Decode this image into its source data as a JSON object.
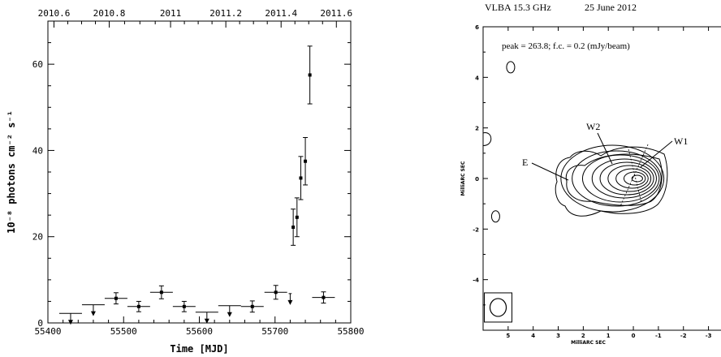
{
  "chart_data": [
    {
      "type": "scatter",
      "xlabel": "Time [MJD]",
      "ylabel": "10⁻⁸ photons cm⁻² s⁻¹",
      "xlim": [
        55400,
        55800
      ],
      "ylim": [
        0,
        70
      ],
      "x_ticks": [
        "55400",
        "55500",
        "55600",
        "55700",
        "55800"
      ],
      "y_ticks": [
        "0",
        "20",
        "40",
        "60"
      ],
      "top_axis_ticks": [
        {
          "label": "2010.6",
          "mjd": 55408
        },
        {
          "label": "2010.8",
          "mjd": 55481
        },
        {
          "label": "2011",
          "mjd": 55562
        },
        {
          "label": "2011.2",
          "mjd": 55635
        },
        {
          "label": "2011.4",
          "mjd": 55708
        },
        {
          "label": "2011.6",
          "mjd": 55781
        }
      ],
      "series": [
        {
          "kind": "detections",
          "points": [
            {
              "x": 55490,
              "y": 5.7,
              "xerr": 15,
              "yerr": 1.3
            },
            {
              "x": 55520,
              "y": 3.8,
              "xerr": 15,
              "yerr": 1.2
            },
            {
              "x": 55550,
              "y": 7.1,
              "xerr": 15,
              "yerr": 1.5
            },
            {
              "x": 55580,
              "y": 3.8,
              "xerr": 15,
              "yerr": 1.2
            },
            {
              "x": 55670,
              "y": 3.8,
              "xerr": 15,
              "yerr": 1.3
            },
            {
              "x": 55701,
              "y": 7.1,
              "xerr": 15,
              "yerr": 1.6
            },
            {
              "x": 55724,
              "y": 22.2,
              "xerr": 2,
              "yerr": 4.2
            },
            {
              "x": 55729,
              "y": 24.5,
              "xerr": 2,
              "yerr": 4.5
            },
            {
              "x": 55734,
              "y": 33.6,
              "xerr": 2,
              "yerr": 5.0
            },
            {
              "x": 55740,
              "y": 37.5,
              "xerr": 2,
              "yerr": 5.5
            },
            {
              "x": 55746,
              "y": 57.5,
              "xerr": 2,
              "yerr": 6.7
            },
            {
              "x": 55764,
              "y": 5.9,
              "xerr": 15,
              "yerr": 1.3
            }
          ]
        },
        {
          "kind": "upper_limits",
          "points": [
            {
              "x": 55430,
              "y": 2.2,
              "xerr": 15
            },
            {
              "x": 55460,
              "y": 4.2,
              "xerr": 15
            },
            {
              "x": 55610,
              "y": 2.5,
              "xerr": 15
            },
            {
              "x": 55640,
              "y": 4.0,
              "xerr": 15
            },
            {
              "x": 55720,
              "y": 6.8,
              "xerr": 2
            }
          ]
        }
      ]
    },
    {
      "type": "contour",
      "title_left": "VLBA   15.3 GHz",
      "title_right": "25 June 2012",
      "annotation": "peak = 263.8;  f.c. = 0.2  (mJy/beam)",
      "xlabel": "MilliARC SEC",
      "ylabel": "MilliARC SEC",
      "xlim": [
        6,
        -3.5
      ],
      "ylim": [
        -6,
        6
      ],
      "x_ticks": [
        "5",
        "4",
        "3",
        "2",
        "1",
        "0",
        "-1",
        "-2",
        "-3"
      ],
      "y_ticks": [
        "6",
        "4",
        "2",
        "0",
        "-2",
        "-4"
      ],
      "component_labels": [
        "E",
        "W2",
        "W1"
      ],
      "peak_position": [
        0,
        0
      ],
      "beam_center": [
        5.4,
        -5.1
      ]
    }
  ]
}
